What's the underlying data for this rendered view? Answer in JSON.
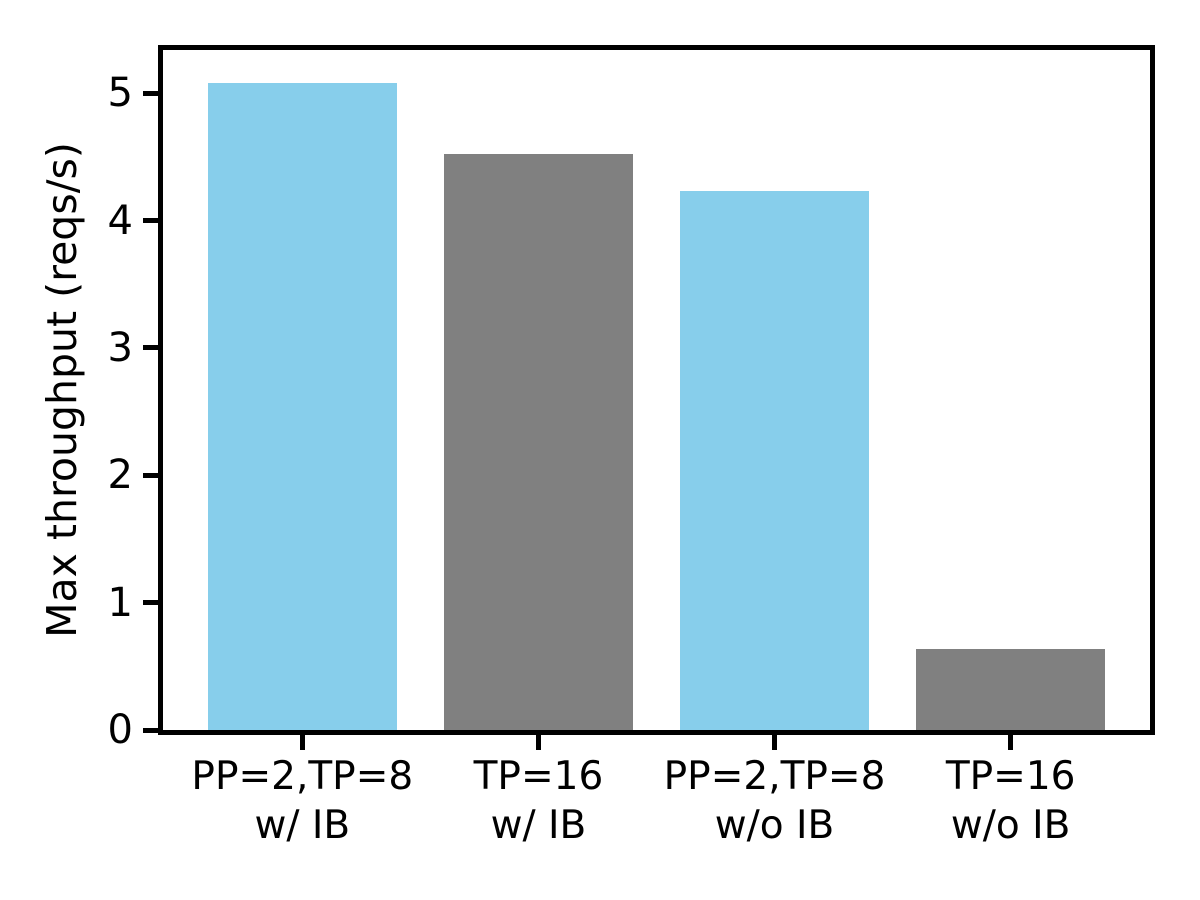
{
  "chart_data": {
    "type": "bar",
    "ylabel": "Max throughput (reqs/s)",
    "categories": [
      "PP=2,TP=8\nw/ IB",
      "TP=16\nw/ IB",
      "PP=2,TP=8\nw/o IB",
      "TP=16\nw/o IB"
    ],
    "values": [
      5.08,
      4.52,
      4.23,
      0.64
    ],
    "bar_colors": [
      "#87CEEB",
      "#808080",
      "#87CEEB",
      "#808080"
    ],
    "yticks": [
      0,
      1,
      2,
      3,
      4,
      5
    ],
    "ylim": [
      0,
      5.34
    ],
    "bar_width": 0.8,
    "grid": false,
    "legend_position": "none",
    "axis_color": "#000000",
    "text_color": "#000000",
    "background_color": "#ffffff"
  }
}
